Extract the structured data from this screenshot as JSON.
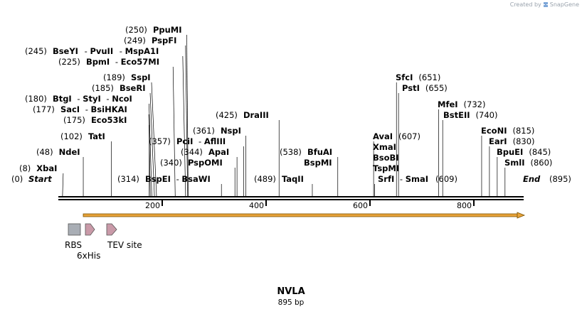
{
  "credit": {
    "prefix": "Created by",
    "brand": "SnapGene"
  },
  "construct": {
    "name": "NVLA",
    "length_label": "895 bp",
    "length": 895
  },
  "map": {
    "start": {
      "pos": "(0)",
      "label": "Start"
    },
    "end": {
      "label": "End",
      "pos": "(895)"
    },
    "ticks": [
      200,
      400,
      600,
      800
    ]
  },
  "sites": [
    {
      "name": "XbaI",
      "bp": 8,
      "pos": "(8)"
    },
    {
      "name": "NdeI",
      "bp": 48,
      "pos": "(48)"
    },
    {
      "name": "TatI",
      "bp": 102,
      "pos": "(102)"
    },
    {
      "name": "Eco53kI",
      "bp": 175,
      "pos": "(175)"
    },
    {
      "name": "SacI",
      "bp": 177,
      "pos": "(177)"
    },
    {
      "name": "BsiHKAI",
      "bp": 177
    },
    {
      "name": "BtgI",
      "bp": 180,
      "pos": "(180)"
    },
    {
      "name": "StyI",
      "bp": 180
    },
    {
      "name": "NcoI",
      "bp": 180
    },
    {
      "name": "BseRI",
      "bp": 185,
      "pos": "(185)"
    },
    {
      "name": "SspI",
      "bp": 189,
      "pos": "(189)"
    },
    {
      "name": "BpmI",
      "bp": 225,
      "pos": "(225)"
    },
    {
      "name": "Eco57MI",
      "bp": 225
    },
    {
      "name": "BseYI",
      "bp": 245,
      "pos": "(245)"
    },
    {
      "name": "PvuII",
      "bp": 245
    },
    {
      "name": "MspA1I",
      "bp": 245
    },
    {
      "name": "PspFI",
      "bp": 249,
      "pos": "(249)"
    },
    {
      "name": "PpuMI",
      "bp": 250,
      "pos": "(250)"
    },
    {
      "name": "BspEI",
      "bp": 314,
      "pos": "(314)"
    },
    {
      "name": "BsaWI",
      "bp": 314
    },
    {
      "name": "PspOMI",
      "bp": 340,
      "pos": "(340)"
    },
    {
      "name": "ApaI",
      "bp": 344,
      "pos": "(344)"
    },
    {
      "name": "PciI",
      "bp": 357,
      "pos": "(357)"
    },
    {
      "name": "AflIII",
      "bp": 361
    },
    {
      "name": "NspI",
      "bp": 361,
      "pos": "(361)"
    },
    {
      "name": "DraIII",
      "bp": 425,
      "pos": "(425)"
    },
    {
      "name": "TaqII",
      "bp": 489,
      "pos": "(489)"
    },
    {
      "name": "BfuAI",
      "bp": 538,
      "pos": "(538)"
    },
    {
      "name": "BspMI",
      "bp": 538
    },
    {
      "name": "SrfI",
      "bp": 609,
      "pos": "(609)"
    },
    {
      "name": "SmaI",
      "bp": 609
    },
    {
      "name": "TspMI",
      "bp": 607
    },
    {
      "name": "BsoBI",
      "bp": 607
    },
    {
      "name": "XmaI",
      "bp": 607
    },
    {
      "name": "AvaI",
      "bp": 607,
      "pos": "(607)"
    },
    {
      "name": "PstI",
      "bp": 655,
      "pos": "(655)"
    },
    {
      "name": "SfcI",
      "bp": 651,
      "pos": "(651)"
    },
    {
      "name": "BstEII",
      "bp": 740,
      "pos": "(740)"
    },
    {
      "name": "MfeI",
      "bp": 732,
      "pos": "(732)"
    },
    {
      "name": "SmlI",
      "bp": 860,
      "pos": "(860)"
    },
    {
      "name": "BpuEI",
      "bp": 845,
      "pos": "(845)"
    },
    {
      "name": "EarI",
      "bp": 830,
      "pos": "(830)"
    },
    {
      "name": "EcoNI",
      "bp": 815,
      "pos": "(815)"
    }
  ],
  "features": [
    {
      "name": "RBS",
      "type": "box",
      "color": "#a9aeb5"
    },
    {
      "name": "6xHis",
      "type": "arrow",
      "color": "#c99aa8"
    },
    {
      "name": "TEV site",
      "type": "arrow",
      "color": "#c99aa8"
    }
  ],
  "orf": {
    "start_bp": 48,
    "end_bp": 895,
    "color": "#e8a33a"
  }
}
